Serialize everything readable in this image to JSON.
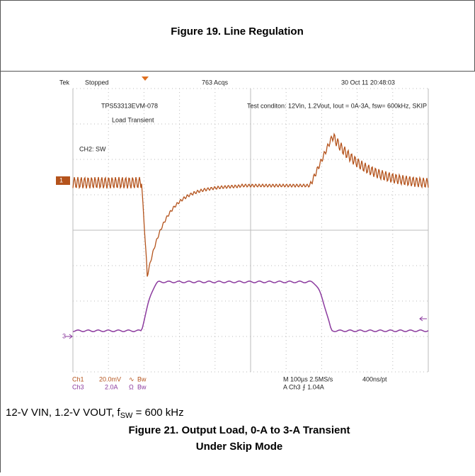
{
  "header": {
    "title": "Figure 19. Line Regulation"
  },
  "scope": {
    "brand": "Tek",
    "state": "Stopped",
    "acqs": "763 Acqs",
    "datetime": "30 Oct 11 20:48:03",
    "board": "TPS53313EVM-078",
    "test": "Load Transient",
    "channel_note": "CH2: SW",
    "condition": "Test conditon: 12Vin, 1.2Vout, Iout = 0A-3A, fsw= 600kHz, SKIP",
    "ch1_marker": "1",
    "ch3_marker": "3",
    "ch1": "Ch1",
    "ch1_scale": "20.0mV",
    "ch1_coupling": "∿",
    "ch1_bw": "Bw",
    "ch3": "Ch3",
    "ch3_scale": "2.0A",
    "ch3_coupling": "Ω",
    "ch3_bw": "Bw",
    "timebase": "M 100µs 2.5MS/s",
    "resolution": "400ns/pt",
    "trigger": "A  Ch3  ⨍  1.04A"
  },
  "caption": {
    "conditions_pre": "12-V VIN, 1.2-V VOUT, f",
    "conditions_sub": "SW",
    "conditions_post": " = 600 kHz",
    "title_line1": "Figure 21. Output Load, 0-A to 3-A Transient",
    "title_line2": "Under Skip Mode"
  }
}
